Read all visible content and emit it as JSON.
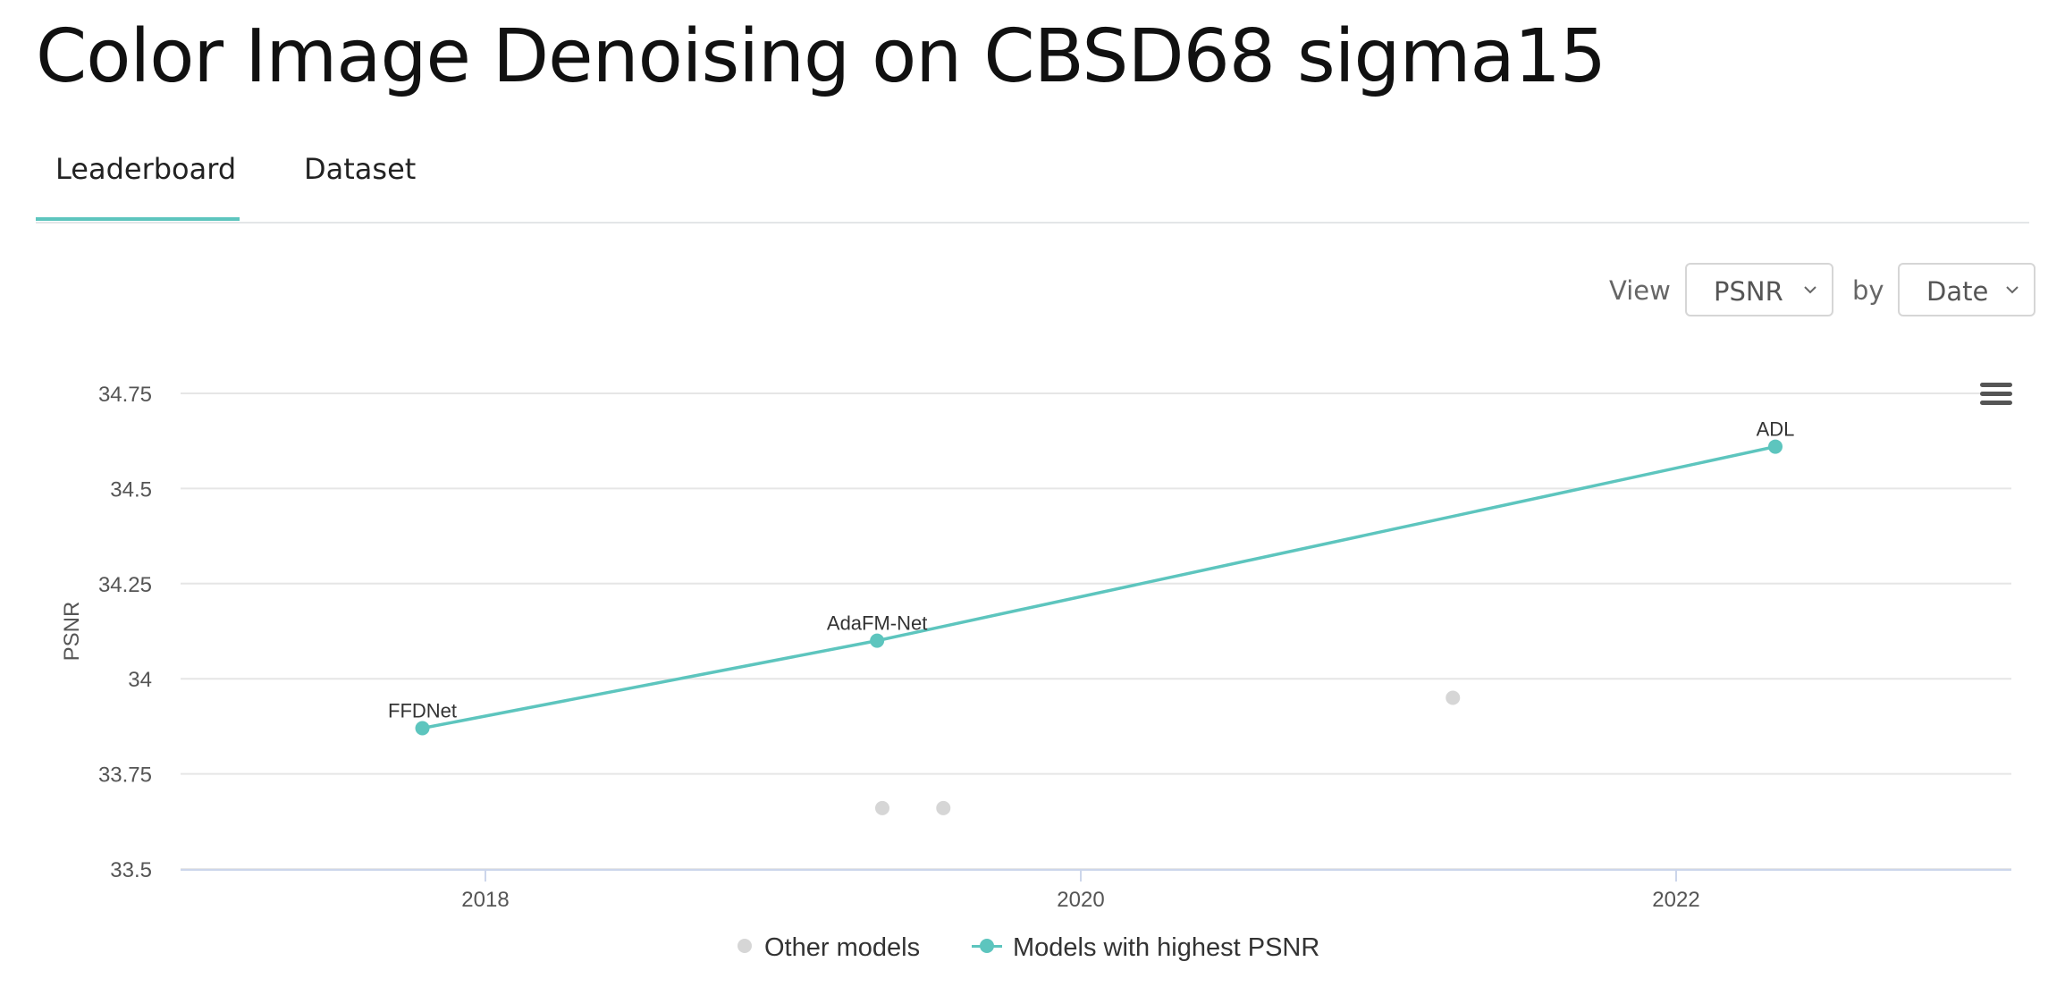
{
  "page": {
    "title": "Color Image Denoising on CBSD68 sigma15"
  },
  "tabs": [
    {
      "label": "Leaderboard",
      "active": true
    },
    {
      "label": "Dataset",
      "active": false
    }
  ],
  "controls": {
    "view_label": "View",
    "metric_value": "PSNR",
    "by_label": "by",
    "axis_value": "Date"
  },
  "colors": {
    "accent": "#5dc5be",
    "other_models": "#d6d6d6"
  },
  "icons": {
    "menu": "hamburger-menu-icon",
    "select": "chevron-down-icon"
  },
  "chart_data": {
    "type": "scatter",
    "ylabel": "PSNR",
    "xlabel": "",
    "ylim": [
      33.5,
      34.75
    ],
    "yticks": [
      "33.5",
      "33.75",
      "34",
      "34.25",
      "34.5",
      "34.75"
    ],
    "xticks": [
      "2018",
      "2020",
      "2022"
    ],
    "grid": true,
    "legend_placement": "bottom",
    "series": [
      {
        "name": "Other models",
        "points": [
          {
            "date": "2019-05-01",
            "y": 33.66
          },
          {
            "date": "2019-07-15",
            "y": 33.66
          },
          {
            "date": "2021-04-01",
            "y": 33.95
          }
        ]
      },
      {
        "name": "Models with highest PSNR",
        "points": [
          {
            "date": "2017-10-15",
            "y": 33.87,
            "label": "FFDNet"
          },
          {
            "date": "2019-04-25",
            "y": 34.1,
            "label": "AdaFM-Net"
          },
          {
            "date": "2022-05-01",
            "y": 34.61,
            "label": "ADL"
          }
        ]
      }
    ]
  }
}
